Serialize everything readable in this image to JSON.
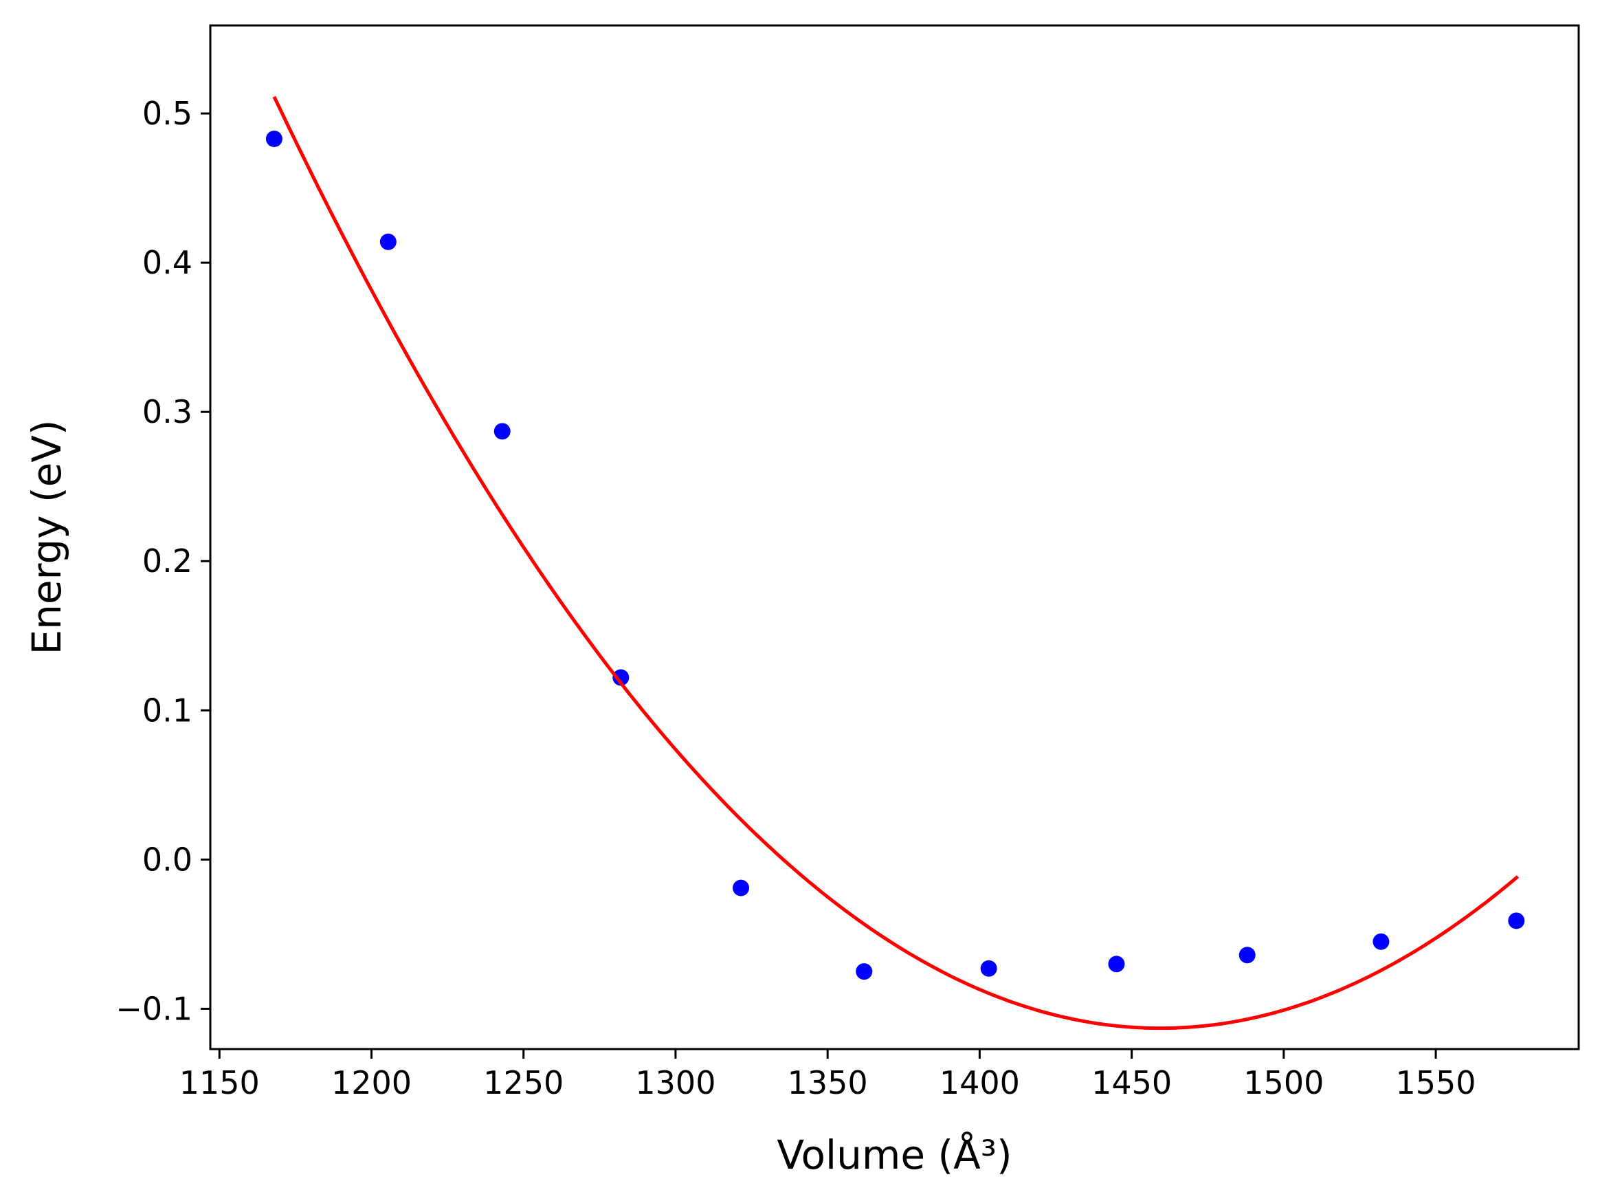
{
  "chart_data": {
    "type": "scatter",
    "title": "",
    "xlabel": "Volume (Å³)",
    "ylabel": "Energy (eV)",
    "xlim": [
      1147,
      1597
    ],
    "ylim": [
      -0.127,
      0.559
    ],
    "grid": false,
    "x_ticks": [
      1150,
      1200,
      1250,
      1300,
      1350,
      1400,
      1450,
      1500,
      1550
    ],
    "x_tick_labels": [
      "1150",
      "1200",
      "1250",
      "1300",
      "1350",
      "1400",
      "1450",
      "1500",
      "1550"
    ],
    "y_ticks": [
      -0.1,
      0.0,
      0.1,
      0.2,
      0.3,
      0.4,
      0.5
    ],
    "y_tick_labels": [
      "−0.1",
      "0.0",
      "0.1",
      "0.2",
      "0.3",
      "0.4",
      "0.5"
    ],
    "series": [
      {
        "kind": "scatter",
        "color": "#0000ff",
        "points": [
          [
            1168,
            0.483
          ],
          [
            1205.5,
            0.414
          ],
          [
            1243,
            0.287
          ],
          [
            1282,
            0.122
          ],
          [
            1321.5,
            -0.019
          ],
          [
            1362,
            -0.075
          ],
          [
            1403,
            -0.073
          ],
          [
            1445,
            -0.07
          ],
          [
            1488,
            -0.064
          ],
          [
            1532,
            -0.055
          ],
          [
            1576.5,
            -0.041
          ]
        ]
      },
      {
        "kind": "line",
        "color": "#ff0000",
        "fit": "quadratic",
        "x": [
          1168,
          1200,
          1250,
          1300,
          1350,
          1400,
          1461,
          1500,
          1550,
          1577
        ],
        "y": [
          0.528,
          0.375,
          0.197,
          0.064,
          -0.03,
          -0.081,
          -0.097,
          -0.09,
          -0.062,
          -0.018
        ]
      }
    ]
  }
}
